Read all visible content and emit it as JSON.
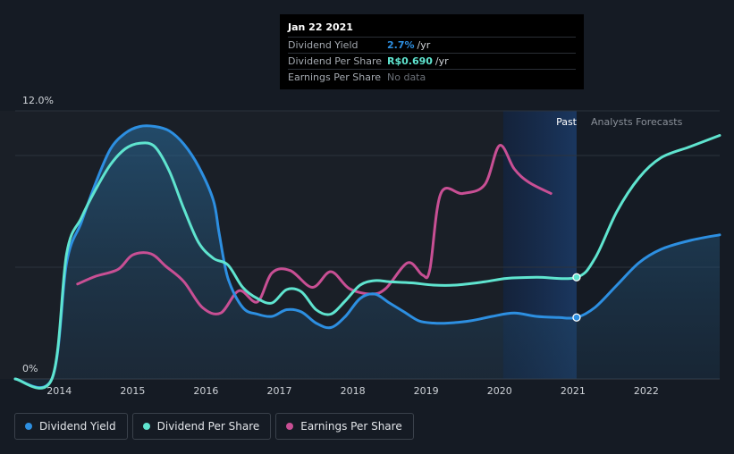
{
  "chart_data": {
    "type": "line",
    "y_axis": {
      "min_label": "0%",
      "max_label": "12.0%",
      "ylim": [
        0,
        12
      ]
    },
    "x_axis": {
      "ticks": [
        "2014",
        "2015",
        "2016",
        "2017",
        "2018",
        "2019",
        "2020",
        "2021",
        "2022"
      ],
      "xlim": [
        2013.4,
        2023.0
      ]
    },
    "regions": {
      "past_label": "Past",
      "forecast_label": "Analysts Forecasts",
      "past_start": 2020.05,
      "past_end": 2021.05
    },
    "series": [
      {
        "name": "Dividend Yield",
        "color": "#2d8fe1",
        "points": [
          [
            2013.4,
            0
          ],
          [
            2013.9,
            0
          ],
          [
            2014.1,
            5.2
          ],
          [
            2014.3,
            7.0
          ],
          [
            2014.5,
            8.8
          ],
          [
            2014.7,
            10.3
          ],
          [
            2014.9,
            11.0
          ],
          [
            2015.1,
            11.3
          ],
          [
            2015.3,
            11.3
          ],
          [
            2015.5,
            11.1
          ],
          [
            2015.7,
            10.5
          ],
          [
            2015.9,
            9.5
          ],
          [
            2016.1,
            8.0
          ],
          [
            2016.18,
            6.5
          ],
          [
            2016.3,
            4.5
          ],
          [
            2016.5,
            3.2
          ],
          [
            2016.7,
            2.9
          ],
          [
            2016.9,
            2.8
          ],
          [
            2017.1,
            3.1
          ],
          [
            2017.3,
            3.0
          ],
          [
            2017.5,
            2.5
          ],
          [
            2017.7,
            2.3
          ],
          [
            2017.9,
            2.8
          ],
          [
            2018.1,
            3.6
          ],
          [
            2018.3,
            3.8
          ],
          [
            2018.5,
            3.4
          ],
          [
            2018.7,
            3.0
          ],
          [
            2018.9,
            2.6
          ],
          [
            2019.1,
            2.5
          ],
          [
            2019.3,
            2.5
          ],
          [
            2019.6,
            2.6
          ],
          [
            2019.9,
            2.8
          ],
          [
            2020.2,
            2.95
          ],
          [
            2020.5,
            2.8
          ],
          [
            2020.8,
            2.75
          ],
          [
            2021.05,
            2.75
          ],
          [
            2021.3,
            3.2
          ],
          [
            2021.6,
            4.2
          ],
          [
            2021.9,
            5.2
          ],
          [
            2022.2,
            5.8
          ],
          [
            2022.6,
            6.2
          ],
          [
            2023.0,
            6.45
          ]
        ]
      },
      {
        "name": "Dividend Per Share",
        "color": "#5fe4cf",
        "points": [
          [
            2013.4,
            0
          ],
          [
            2013.9,
            0
          ],
          [
            2014.1,
            5.6
          ],
          [
            2014.3,
            7.2
          ],
          [
            2014.5,
            8.5
          ],
          [
            2014.7,
            9.6
          ],
          [
            2014.9,
            10.3
          ],
          [
            2015.1,
            10.55
          ],
          [
            2015.3,
            10.4
          ],
          [
            2015.5,
            9.3
          ],
          [
            2015.7,
            7.6
          ],
          [
            2015.9,
            6.1
          ],
          [
            2016.1,
            5.4
          ],
          [
            2016.3,
            5.1
          ],
          [
            2016.5,
            4.1
          ],
          [
            2016.7,
            3.6
          ],
          [
            2016.9,
            3.4
          ],
          [
            2017.1,
            4.0
          ],
          [
            2017.3,
            3.9
          ],
          [
            2017.5,
            3.1
          ],
          [
            2017.7,
            2.9
          ],
          [
            2017.9,
            3.5
          ],
          [
            2018.1,
            4.2
          ],
          [
            2018.3,
            4.4
          ],
          [
            2018.5,
            4.35
          ],
          [
            2018.8,
            4.3
          ],
          [
            2019.1,
            4.2
          ],
          [
            2019.4,
            4.2
          ],
          [
            2019.8,
            4.35
          ],
          [
            2020.1,
            4.5
          ],
          [
            2020.5,
            4.55
          ],
          [
            2021.05,
            4.55
          ],
          [
            2021.3,
            5.4
          ],
          [
            2021.6,
            7.5
          ],
          [
            2021.9,
            9.0
          ],
          [
            2022.2,
            9.9
          ],
          [
            2022.6,
            10.4
          ],
          [
            2023.0,
            10.9
          ]
        ]
      },
      {
        "name": "Earnings Per Share",
        "color": "#c84f94",
        "points": [
          [
            2014.25,
            4.25
          ],
          [
            2014.5,
            4.6
          ],
          [
            2014.8,
            4.9
          ],
          [
            2015.0,
            5.55
          ],
          [
            2015.25,
            5.6
          ],
          [
            2015.45,
            5.05
          ],
          [
            2015.7,
            4.35
          ],
          [
            2015.95,
            3.2
          ],
          [
            2016.2,
            2.95
          ],
          [
            2016.45,
            3.95
          ],
          [
            2016.7,
            3.45
          ],
          [
            2016.9,
            4.75
          ],
          [
            2017.15,
            4.85
          ],
          [
            2017.45,
            4.1
          ],
          [
            2017.7,
            4.8
          ],
          [
            2017.95,
            4.05
          ],
          [
            2018.25,
            3.8
          ],
          [
            2018.45,
            4.05
          ],
          [
            2018.75,
            5.2
          ],
          [
            2018.95,
            4.65
          ],
          [
            2019.05,
            4.9
          ],
          [
            2019.2,
            8.3
          ],
          [
            2019.5,
            8.3
          ],
          [
            2019.8,
            8.7
          ],
          [
            2020.0,
            10.45
          ],
          [
            2020.2,
            9.4
          ],
          [
            2020.4,
            8.8
          ],
          [
            2020.7,
            8.3
          ]
        ]
      }
    ],
    "markers": [
      {
        "series": "Dividend Per Share",
        "x": 2021.05,
        "y": 4.55
      },
      {
        "series": "Dividend Yield",
        "x": 2021.05,
        "y": 2.75
      }
    ]
  },
  "tooltip": {
    "date": "Jan 22 2021",
    "rows": [
      {
        "name": "Dividend Yield",
        "value": "2.7%",
        "unit": "/yr",
        "color": "#2d8fe1"
      },
      {
        "name": "Dividend Per Share",
        "value": "R$0.690",
        "unit": "/yr",
        "color": "#5fe4cf"
      },
      {
        "name": "Earnings Per Share",
        "value": "No data",
        "unit": "",
        "color": "#6b7078"
      }
    ]
  },
  "legend": [
    {
      "label": "Dividend Yield",
      "color": "#2d8fe1"
    },
    {
      "label": "Dividend Per Share",
      "color": "#5fe4cf"
    },
    {
      "label": "Earnings Per Share",
      "color": "#c84f94"
    }
  ]
}
